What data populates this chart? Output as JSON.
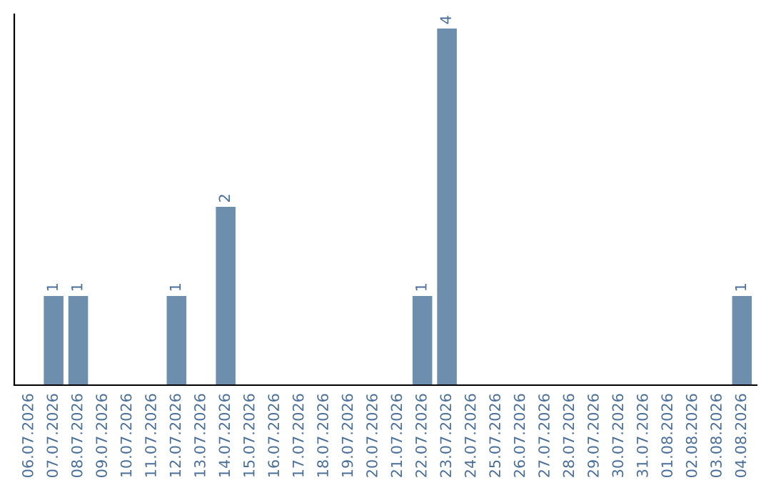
{
  "chart_data": {
    "type": "bar",
    "categories": [
      "06.07.2026",
      "07.07.2026",
      "08.07.2026",
      "09.07.2026",
      "10.07.2026",
      "11.07.2026",
      "12.07.2026",
      "13.07.2026",
      "14.07.2026",
      "15.07.2026",
      "16.07.2026",
      "17.07.2026",
      "18.07.2026",
      "19.07.2026",
      "20.07.2026",
      "21.07.2026",
      "22.07.2026",
      "23.07.2026",
      "24.07.2026",
      "25.07.2026",
      "26.07.2026",
      "27.07.2026",
      "28.07.2026",
      "29.07.2026",
      "30.07.2026",
      "31.07.2026",
      "01.08.2026",
      "02.08.2026",
      "03.08.2026",
      "04.08.2026"
    ],
    "values": [
      0,
      1,
      1,
      0,
      0,
      0,
      1,
      0,
      2,
      0,
      0,
      0,
      0,
      0,
      0,
      0,
      1,
      4,
      0,
      0,
      0,
      0,
      0,
      0,
      0,
      0,
      0,
      0,
      0,
      1
    ],
    "value_labels": [
      null,
      "1",
      "1",
      null,
      null,
      null,
      "1",
      null,
      "2",
      null,
      null,
      null,
      null,
      null,
      null,
      null,
      "1",
      "4",
      null,
      null,
      null,
      null,
      null,
      null,
      null,
      null,
      null,
      null,
      null,
      "1"
    ],
    "color": "#6d8eac",
    "tick_labels": "x",
    "grid": false,
    "legend": false
  }
}
